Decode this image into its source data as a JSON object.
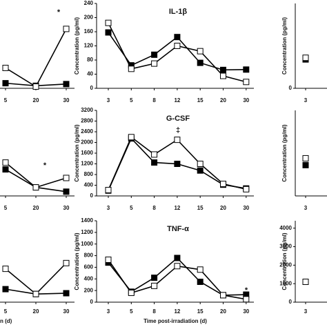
{
  "chart_data": [
    {
      "type": "line",
      "categories": [
        "5",
        "20",
        "30"
      ],
      "ylim": [
        0,
        100
      ],
      "yticks": [],
      "annotations": [
        "*"
      ],
      "series": [
        {
          "name": null,
          "color": "#000000",
          "values": [
            6,
            3,
            5
          ]
        },
        {
          "name": null,
          "color": "#ffffff",
          "values": [
            24,
            2,
            70
          ]
        }
      ]
    },
    {
      "type": "line",
      "categories": [
        "5",
        "20",
        "30"
      ],
      "ylim": [
        0,
        100
      ],
      "yticks": [],
      "annotations": [
        "*"
      ],
      "series": [
        {
          "name": null,
          "color": "#000000",
          "values": [
            31,
            10,
            5
          ]
        },
        {
          "name": null,
          "color": "#ffffff",
          "values": [
            39,
            10,
            21
          ]
        }
      ]
    },
    {
      "type": "line",
      "categories": [
        "5",
        "20",
        "30"
      ],
      "ylim": [
        0,
        100
      ],
      "yticks": [],
      "xlabel": "n (d)",
      "series": [
        {
          "name": null,
          "color": "#000000",
          "values": [
            16,
            10,
            11
          ]
        },
        {
          "name": null,
          "color": "#ffffff",
          "values": [
            41,
            10,
            48
          ]
        }
      ]
    },
    {
      "type": "line",
      "title": "IL-1β",
      "ylabel": "Concentration (pg/ml)",
      "categories": [
        "3",
        "5",
        "8",
        "12",
        "15",
        "20",
        "30"
      ],
      "ylim": [
        0,
        240
      ],
      "yticks": [
        0,
        40,
        80,
        120,
        160,
        200,
        240
      ],
      "series": [
        {
          "name": null,
          "color": "#000000",
          "values": [
            158,
            65,
            95,
            145,
            72,
            52,
            53
          ]
        },
        {
          "name": null,
          "color": "#ffffff",
          "values": [
            185,
            55,
            70,
            120,
            105,
            35,
            18
          ]
        }
      ]
    },
    {
      "type": "line",
      "title": "G-CSF",
      "ylabel": "Concentration (pg/ml)",
      "categories": [
        "3",
        "5",
        "8",
        "12",
        "15",
        "20",
        "30"
      ],
      "ylim": [
        0,
        3200
      ],
      "yticks": [
        0,
        400,
        800,
        1200,
        1600,
        2000,
        2400,
        2800,
        3200
      ],
      "annotations": [
        "‡"
      ],
      "series": [
        {
          "name": null,
          "color": "#000000",
          "values": [
            200,
            2150,
            1250,
            1200,
            950,
            420,
            280
          ]
        },
        {
          "name": null,
          "color": "#ffffff",
          "values": [
            220,
            2200,
            1550,
            2100,
            1200,
            450,
            250
          ]
        }
      ]
    },
    {
      "type": "line",
      "title": "TNF-α",
      "ylabel": "Concentration (pg/ml)",
      "xlabel": "Time post-irradiation (d)",
      "categories": [
        "3",
        "5",
        "8",
        "12",
        "15",
        "20",
        "30"
      ],
      "ylim": [
        0,
        1400
      ],
      "yticks": [
        0,
        200,
        400,
        600,
        800,
        1000,
        1200,
        1400
      ],
      "annotations": [
        "*"
      ],
      "series": [
        {
          "name": null,
          "color": "#000000",
          "values": [
            680,
            180,
            420,
            760,
            350,
            120,
            130
          ]
        },
        {
          "name": null,
          "color": "#ffffff",
          "values": [
            730,
            160,
            280,
            620,
            560,
            120,
            50
          ]
        }
      ]
    },
    {
      "type": "line",
      "ylabel": "Concentration (pg/ml)",
      "categories": [
        "3"
      ],
      "ylim": [
        0,
        100
      ],
      "yticks": [
        0
      ],
      "series": [
        {
          "name": null,
          "color": "#000000",
          "values": [
            34
          ]
        },
        {
          "name": null,
          "color": "#ffffff",
          "values": [
            36
          ]
        }
      ]
    },
    {
      "type": "line",
      "ylabel": "Concentration (pg/ml)",
      "categories": [
        "3"
      ],
      "ylim": [
        0,
        100
      ],
      "yticks": [],
      "series": [
        {
          "name": null,
          "color": "#000000",
          "values": [
            36
          ]
        },
        {
          "name": null,
          "color": "#ffffff",
          "values": [
            44
          ]
        }
      ]
    },
    {
      "type": "line",
      "ylabel": "Concentration (pg/ml)",
      "categories": [
        "3"
      ],
      "ylim": [
        0,
        4400
      ],
      "yticks": [
        0,
        1000,
        2000,
        3000,
        4000
      ],
      "series": [
        {
          "name": null,
          "color": "#000000",
          "values": [
            1100
          ]
        },
        {
          "name": null,
          "color": "#ffffff",
          "values": [
            1100
          ]
        }
      ]
    }
  ]
}
